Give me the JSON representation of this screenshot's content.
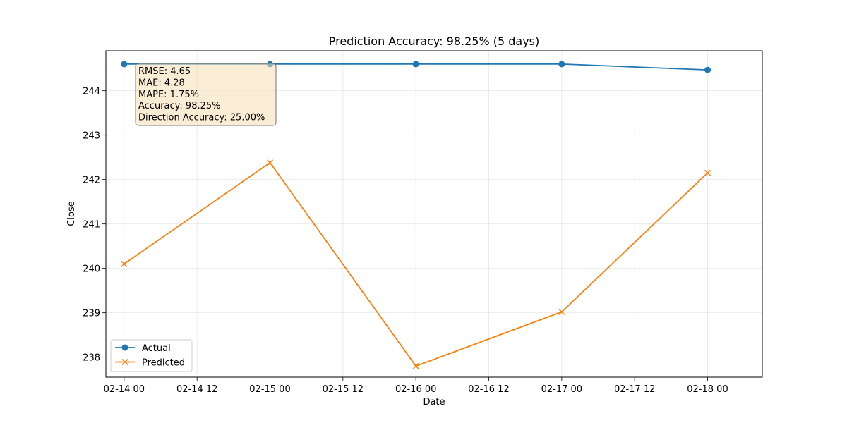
{
  "chart_data": {
    "type": "line",
    "title": "Prediction Accuracy: 98.25% (5 days)",
    "xlabel": "Date",
    "ylabel": "Close",
    "x": [
      "02-14",
      "02-15",
      "02-16",
      "02-17",
      "02-18"
    ],
    "x_ticks": [
      "02-14 00",
      "02-14 12",
      "02-15 00",
      "02-15 12",
      "02-16 00",
      "02-16 12",
      "02-17 00",
      "02-17 12",
      "02-18 00"
    ],
    "xlim": [
      "02-13 21:00",
      "02-18 09:00"
    ],
    "y_ticks": [
      238,
      239,
      240,
      241,
      242,
      243,
      244
    ],
    "ylim": [
      237.55,
      244.9
    ],
    "grid": true,
    "legend_location": "lower-left",
    "series": [
      {
        "name": "Actual",
        "color": "#1f77b4",
        "marker": "circle",
        "values": [
          244.6,
          244.6,
          244.6,
          244.6,
          244.47
        ]
      },
      {
        "name": "Predicted",
        "color": "#ff7f0e",
        "marker": "x",
        "values": [
          240.1,
          242.38,
          237.8,
          239.02,
          242.15
        ]
      }
    ],
    "annotation": {
      "lines": [
        "RMSE: 4.65",
        "MAE: 4.28",
        "MAPE: 1.75%",
        "Accuracy: 98.25%",
        "Direction Accuracy: 25.00%"
      ],
      "background": "#f5deb3",
      "location": "upper-left"
    }
  }
}
